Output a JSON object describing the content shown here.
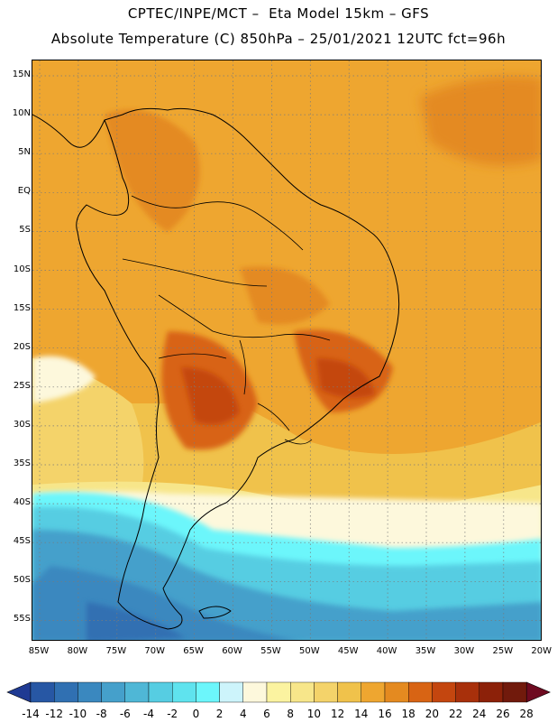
{
  "header": {
    "title_line1": "CPTEC/INPE/MCT –  Eta Model 15km – GFS",
    "title_line2": "Absolute Temperature (C) 850hPa – 25/01/2021 12UTC fct=96h"
  },
  "map": {
    "lat_labels": [
      "15N",
      "10N",
      "5N",
      "EQ",
      "5S",
      "10S",
      "15S",
      "20S",
      "25S",
      "30S",
      "35S",
      "40S",
      "45S",
      "50S",
      "55S"
    ],
    "lon_labels": [
      "85W",
      "80W",
      "75W",
      "70W",
      "65W",
      "60W",
      "55W",
      "50W",
      "45W",
      "40W",
      "35W",
      "30W",
      "25W",
      "20W"
    ],
    "lon_range": [
      -85,
      -20
    ],
    "lat_range": [
      -58,
      17
    ],
    "gridlines": "dotted"
  },
  "colorbar": {
    "labels": [
      "-14",
      "-12",
      "-10",
      "-8",
      "-6",
      "-4",
      "-2",
      "0",
      "2",
      "4",
      "6",
      "8",
      "10",
      "12",
      "14",
      "16",
      "18",
      "20",
      "22",
      "24",
      "26",
      "28"
    ],
    "colors": [
      "#1f3a93",
      "#2757a4",
      "#3070b2",
      "#3a88bf",
      "#45a0cb",
      "#4fb7d6",
      "#56cde2",
      "#5fe3ee",
      "#6cf6fb",
      "#cdf4fb",
      "#fdf8dc",
      "#fbf3a0",
      "#f7e68a",
      "#f4d36a",
      "#f0c24b",
      "#eea630",
      "#e48a20",
      "#d86414",
      "#c4460f",
      "#a8300b",
      "#8c2109",
      "#711a0c",
      "#6e0a20"
    ]
  }
}
